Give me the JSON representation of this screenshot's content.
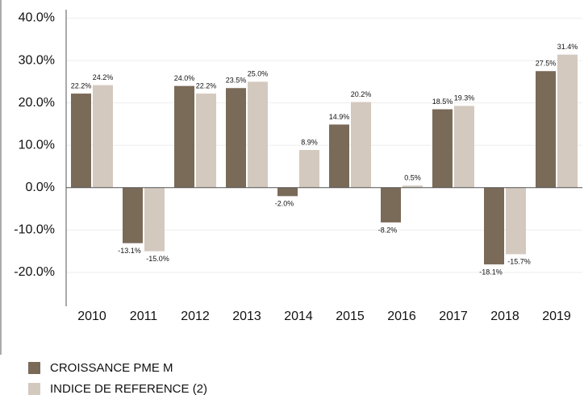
{
  "chart_data": {
    "type": "bar",
    "categories": [
      "2010",
      "2011",
      "2012",
      "2013",
      "2014",
      "2015",
      "2016",
      "2017",
      "2018",
      "2019"
    ],
    "series": [
      {
        "name": "CROISSANCE PME M",
        "color": "#7a6a58",
        "values": [
          22.2,
          -13.1,
          24.0,
          23.5,
          -2.0,
          14.9,
          -8.2,
          18.5,
          -18.1,
          27.5
        ],
        "value_labels": [
          "22.2%",
          "-13.1%",
          "24.0%",
          "23.5%",
          "-2.0%",
          "14.9%",
          "-8.2%",
          "18.5%",
          "-18.1%",
          "27.5%"
        ]
      },
      {
        "name": "INDICE DE REFERENCE (2)",
        "color": "#d4c9bf",
        "values": [
          24.2,
          -15.0,
          22.2,
          25.0,
          8.9,
          20.2,
          0.5,
          19.3,
          -15.7,
          31.4
        ],
        "value_labels": [
          "24.2%",
          "-15.0%",
          "22.2%",
          "25.0%",
          "8.9%",
          "20.2%",
          "0.5%",
          "19.3%",
          "-15.7%",
          "31.4%"
        ]
      }
    ],
    "ylim": [
      -28,
      42
    ],
    "yticks": [
      {
        "value": -20,
        "label": "-20.0%"
      },
      {
        "value": -10,
        "label": "-10.0%"
      },
      {
        "value": 0,
        "label": "0.0%"
      },
      {
        "value": 10,
        "label": "10.0%"
      },
      {
        "value": 20,
        "label": "20.0%"
      },
      {
        "value": 30,
        "label": "30.0%"
      },
      {
        "value": 40,
        "label": "40.0%"
      }
    ],
    "grid": true,
    "legend": "bottom-left"
  }
}
